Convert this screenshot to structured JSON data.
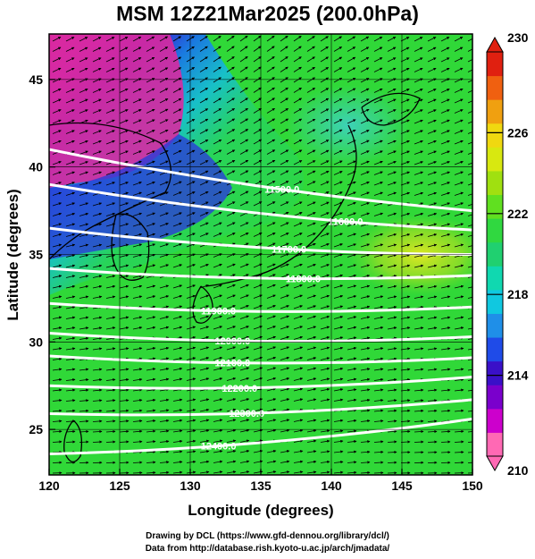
{
  "title": "MSM 12Z21Mar2025 (200.0hPa)",
  "x_axis": {
    "label": "Longitude (degrees)",
    "ticks": [
      120,
      125,
      130,
      135,
      140,
      145,
      150
    ],
    "range": [
      120,
      150
    ]
  },
  "y_axis": {
    "label": "Latitude  (degrees)",
    "ticks": [
      25,
      30,
      35,
      40,
      45
    ],
    "range": [
      22.4,
      47.6
    ]
  },
  "colorbar": {
    "range": [
      210,
      230
    ],
    "tick_labels": [
      "230",
      "226",
      "222",
      "218",
      "214",
      "210"
    ],
    "colors": [
      "#ff69b4",
      "#cc00cc",
      "#7a00cc",
      "#3a10c8",
      "#1f4be8",
      "#1f8fe8",
      "#10c8e0",
      "#10d8b0",
      "#20d070",
      "#30d840",
      "#60e020",
      "#a0e010",
      "#d8e810",
      "#f0d810",
      "#f0a010",
      "#f06010",
      "#e02010"
    ]
  },
  "contours": [
    {
      "label": "11500.0",
      "lat_left": 41.0,
      "lat_right": 37.5,
      "label_lon": 136.5
    },
    {
      "label": "11600.0",
      "lat_left": 39.0,
      "lat_right": 36.4,
      "label_lon": 141.0
    },
    {
      "label": "11700.0",
      "lat_left": 36.5,
      "lat_right": 35.0,
      "label_lon": 137.0
    },
    {
      "label": "11800.0",
      "lat_left": 34.2,
      "lat_right": 33.8,
      "label_lon": 138.0
    },
    {
      "label": "11900.0",
      "lat_left": 32.2,
      "lat_right": 32.0,
      "label_lon": 132.0
    },
    {
      "label": "12000.0",
      "lat_left": 30.5,
      "lat_right": 30.3,
      "label_lon": 133.0
    },
    {
      "label": "12100.0",
      "lat_left": 29.2,
      "lat_right": 29.1,
      "label_lon": 133.0
    },
    {
      "label": "12200.0",
      "lat_left": 27.5,
      "lat_right": 28.0,
      "label_lon": 133.5
    },
    {
      "label": "12300.0",
      "lat_left": 25.9,
      "lat_right": 26.7,
      "label_lon": 134.0
    },
    {
      "label": "12400.0",
      "lat_left": 23.6,
      "lat_right": 25.6,
      "label_lon": 132.0
    }
  ],
  "credits": [
    "Drawing by DCL (https://www.gfd-dennou.org/library/dcl/)",
    "Data from http://database.rish.kyoto-u.ac.jp/arch/jmadata/"
  ]
}
